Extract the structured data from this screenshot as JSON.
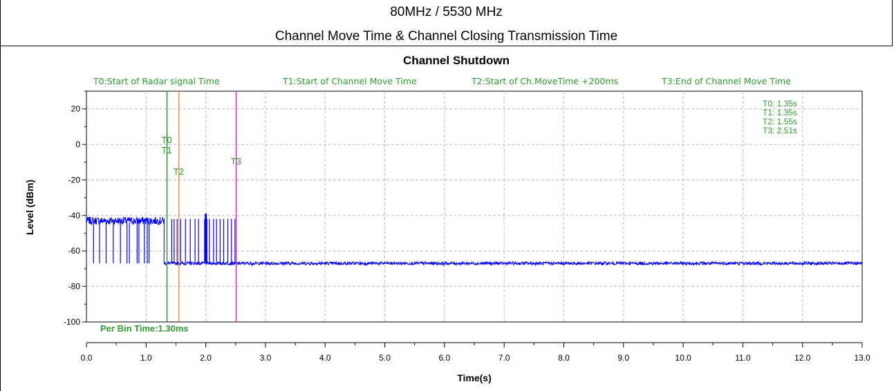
{
  "header": {
    "line1": "80MHz / 5530 MHz",
    "line2": "Channel Move Time & Channel Closing Transmission Time"
  },
  "colors": {
    "signal": "#0000ff",
    "t0_t1": "#2e8b2e",
    "t2": "#ff7f27",
    "t3": "#ff00ff",
    "legend_text": "#2e9b2e",
    "grid": "#bbbbbb"
  },
  "chart_data": {
    "type": "line",
    "title": "Channel Shutdown",
    "xlabel": "Time(s)",
    "ylabel": "Level (dBm)",
    "xlim": [
      0.0,
      13.0
    ],
    "ylim": [
      -100,
      30
    ],
    "grid": true,
    "x_ticks": [
      "0.0",
      "1.0",
      "2.0",
      "3.0",
      "4.0",
      "5.0",
      "6.0",
      "7.0",
      "8.0",
      "9.0",
      "10.0",
      "11.0",
      "12.0",
      "13.0"
    ],
    "y_ticks": [
      "20",
      "0",
      "-20",
      "-40",
      "-60",
      "-80",
      "-100"
    ],
    "legend_top": [
      "T0:Start of Radar signal Time",
      "T1:Start of Channel Move Time",
      "T2:Start of Ch.MoveTime +200ms",
      "T3:End of Channel Move Time"
    ],
    "markers": [
      {
        "name": "T0",
        "x": 1.35,
        "color": "#2e8b2e"
      },
      {
        "name": "T1",
        "x": 1.35,
        "color": "#2e8b2e"
      },
      {
        "name": "T2",
        "x": 1.55,
        "color": "#ff7f27"
      },
      {
        "name": "T3",
        "x": 2.51,
        "color": "#ff00ff"
      }
    ],
    "marker_readout": [
      "T0: 1.35s",
      "T1: 1.35s",
      "T2: 1.55s",
      "T3: 2.51s"
    ],
    "annotation": "Per Bin Time:1.30ms",
    "series": [
      {
        "segments": [
          {
            "x_start": 0.0,
            "x_end": 1.3,
            "level": -43
          },
          {
            "x_start": 1.3,
            "x_end": 13.0,
            "level": -67
          }
        ],
        "dips_to": -67,
        "dip_times": [
          0.12,
          0.22,
          0.33,
          0.45,
          0.57,
          0.68,
          0.72,
          0.85,
          0.88,
          0.97,
          1.02,
          1.05
        ],
        "burst_times": [
          1.43,
          1.47,
          1.52,
          1.58,
          1.66,
          1.74,
          1.82,
          1.88,
          1.98,
          2.02,
          2.06,
          2.13,
          2.18,
          2.24,
          2.3,
          2.37,
          2.43,
          2.49
        ],
        "burst_level": -42
      }
    ]
  }
}
